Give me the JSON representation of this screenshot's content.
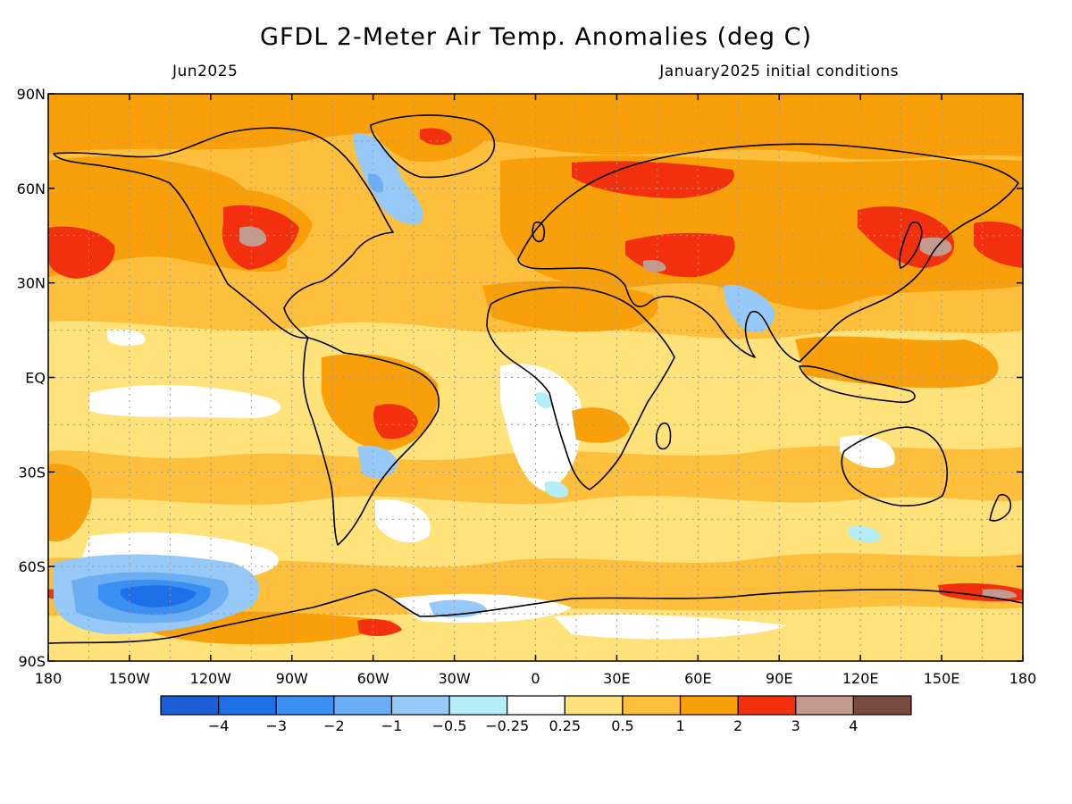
{
  "header": {
    "title": "GFDL 2-Meter Air Temp. Anomalies (deg C)",
    "valid_month": "Jun2025",
    "init_conditions": "January2025 initial conditions"
  },
  "map": {
    "type": "filled-contour map",
    "projection": "cylindrical equidistant",
    "lon_range": [
      -180,
      180
    ],
    "lat_range": [
      -90,
      90
    ],
    "grid": true,
    "lat_tick_labels": [
      "90N",
      "60N",
      "30N",
      "EQ",
      "30S",
      "60S",
      "90S"
    ],
    "lat_tick_values": [
      90,
      60,
      30,
      0,
      -30,
      -60,
      -90
    ],
    "lon_tick_labels": [
      "180",
      "150W",
      "120W",
      "90W",
      "60W",
      "30W",
      "0",
      "30E",
      "60E",
      "90E",
      "120E",
      "150E",
      "180"
    ],
    "lon_tick_values": [
      -180,
      -150,
      -120,
      -90,
      -60,
      -30,
      0,
      30,
      60,
      90,
      120,
      150,
      180
    ]
  },
  "colorbar": {
    "placement": "bottom",
    "colors": [
      "#1a5fd6",
      "#1f6fe8",
      "#3a8ff0",
      "#6aaef4",
      "#96c9f7",
      "#b4ecf8",
      "#ffffff",
      "#ffe37a",
      "#fdbf3c",
      "#f99f0a",
      "#f2300e",
      "#c39a8e",
      "#7a4a3e"
    ],
    "labels": [
      "−4",
      "−3",
      "−2",
      "−1",
      "−0.5",
      "−0.25",
      "0.25",
      "0.5",
      "1",
      "2",
      "3",
      "4"
    ],
    "values": [
      -4,
      -3,
      -2,
      -1,
      -0.5,
      -0.25,
      0.25,
      0.5,
      1,
      2,
      3,
      4
    ]
  }
}
